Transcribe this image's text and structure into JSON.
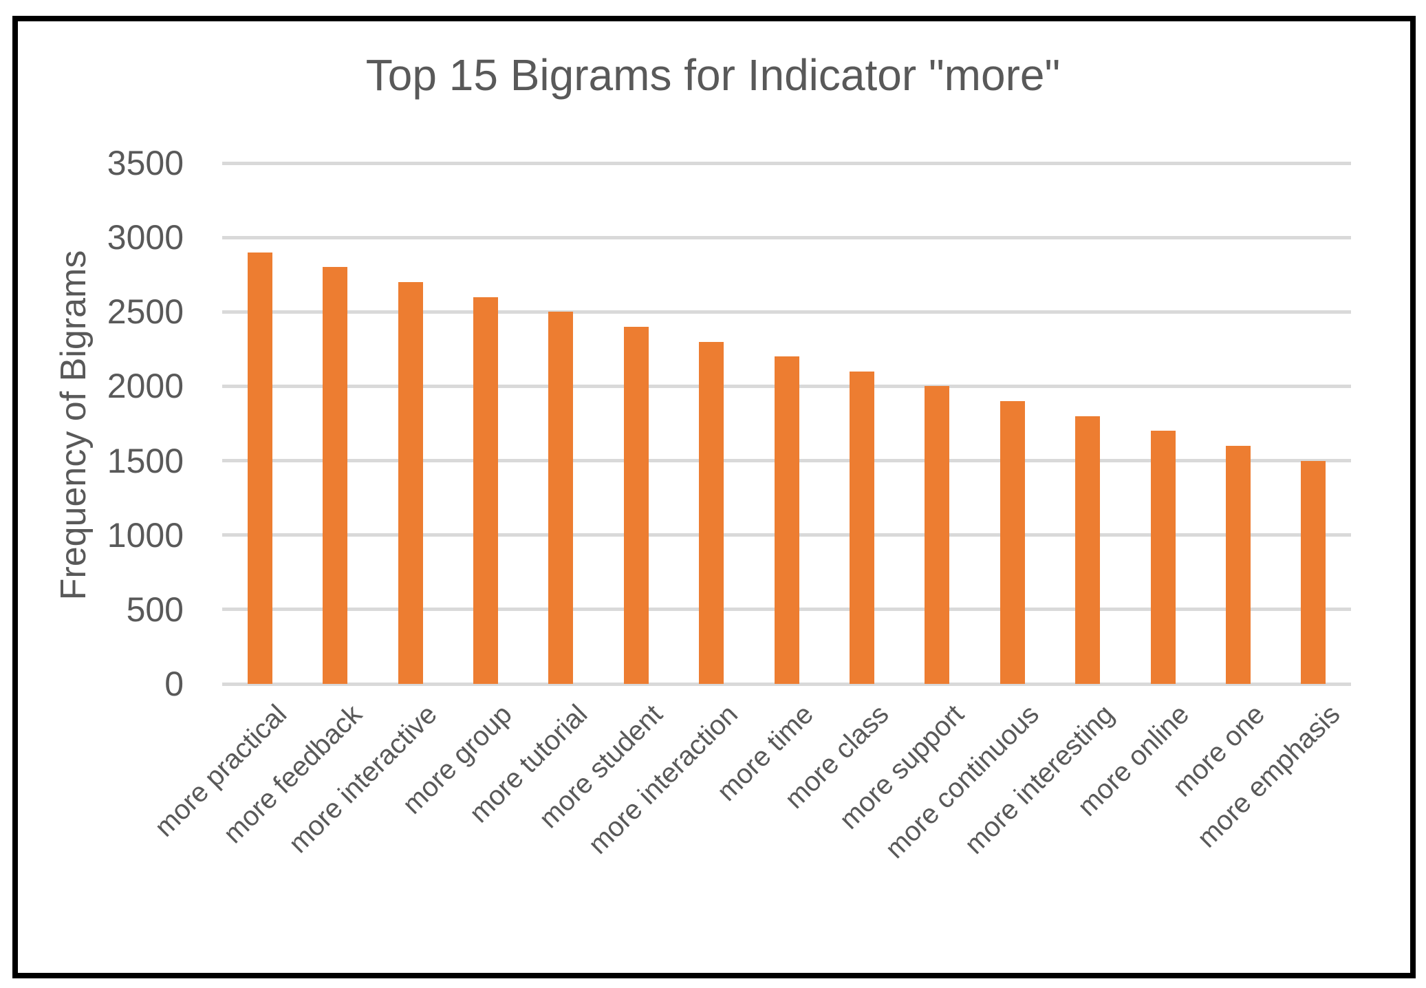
{
  "chart_data": {
    "type": "bar",
    "title": "Top 15 Bigrams for Indicator \"more\"",
    "ylabel": "Frequency of Bigrams",
    "xlabel": "",
    "categories": [
      "more practical",
      "more feedback",
      "more interactive",
      "more group",
      "more tutorial",
      "more student",
      "more interaction",
      "more time",
      "more class",
      "more support",
      "more continuous",
      "more interesting",
      "more online",
      "more one",
      "more emphasis"
    ],
    "values": [
      2900,
      2800,
      2700,
      2600,
      2500,
      2400,
      2300,
      2200,
      2100,
      2000,
      1900,
      1800,
      1700,
      1600,
      1500
    ],
    "ylim": [
      0,
      3500
    ],
    "yticks": [
      0,
      500,
      1000,
      1500,
      2000,
      2500,
      3000,
      3500
    ],
    "grid": "horizontal",
    "legend_position": "none",
    "bar_color": "#ED7D31",
    "gridline_color": "#D9D9D9",
    "text_color": "#595959",
    "border_color": "#000000"
  }
}
